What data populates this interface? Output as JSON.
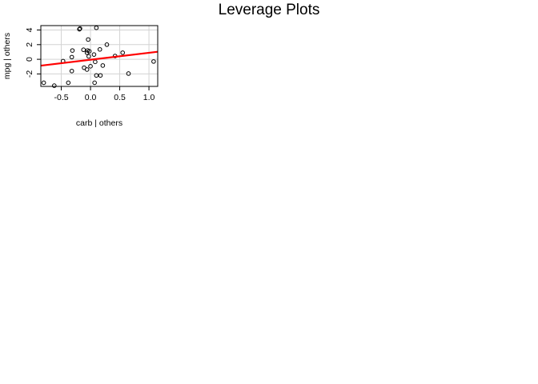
{
  "chart_data": {
    "type": "scatter",
    "title": "Leverage Plots",
    "xlabel": "carb | others",
    "ylabel": "mpg  | others",
    "xlim": [
      -0.85,
      1.15
    ],
    "ylim": [
      -3.7,
      4.6
    ],
    "x_ticks": [
      -0.5,
      0.0,
      0.5,
      1.0
    ],
    "x_tick_labels": [
      "-0.5",
      "0.0",
      "0.5",
      "1.0"
    ],
    "y_ticks": [
      -2,
      0,
      2,
      4
    ],
    "y_tick_labels": [
      "-2",
      "0",
      "2",
      "4"
    ],
    "grid": true,
    "fit_line": {
      "x": [
        -0.85,
        1.15
      ],
      "y": [
        -0.87,
        1.03
      ],
      "color": "#ff0000"
    },
    "points": [
      {
        "x": -0.19,
        "y": 4.1
      },
      {
        "x": -0.18,
        "y": 4.2
      },
      {
        "x": 0.1,
        "y": 4.3
      },
      {
        "x": -0.04,
        "y": 2.7
      },
      {
        "x": 0.28,
        "y": 2.0
      },
      {
        "x": -0.31,
        "y": 1.2
      },
      {
        "x": -0.12,
        "y": 1.3
      },
      {
        "x": -0.05,
        "y": 1.2
      },
      {
        "x": -0.02,
        "y": 1.1
      },
      {
        "x": 0.16,
        "y": 1.35
      },
      {
        "x": -0.06,
        "y": 0.9
      },
      {
        "x": 0.55,
        "y": 0.9
      },
      {
        "x": 0.06,
        "y": 0.65
      },
      {
        "x": -0.32,
        "y": 0.3
      },
      {
        "x": -0.03,
        "y": 0.4
      },
      {
        "x": 0.42,
        "y": 0.45
      },
      {
        "x": -0.47,
        "y": -0.25
      },
      {
        "x": 0.08,
        "y": -0.35
      },
      {
        "x": 1.08,
        "y": -0.3
      },
      {
        "x": 0.0,
        "y": -0.95
      },
      {
        "x": 0.21,
        "y": -0.85
      },
      {
        "x": -0.11,
        "y": -1.15
      },
      {
        "x": -0.06,
        "y": -1.4
      },
      {
        "x": -0.32,
        "y": -1.6
      },
      {
        "x": 0.1,
        "y": -2.2
      },
      {
        "x": 0.17,
        "y": -2.2
      },
      {
        "x": 0.65,
        "y": -1.95
      },
      {
        "x": -0.8,
        "y": -3.2
      },
      {
        "x": -0.38,
        "y": -3.2
      },
      {
        "x": 0.07,
        "y": -3.2
      },
      {
        "x": -0.62,
        "y": -3.6
      }
    ]
  }
}
